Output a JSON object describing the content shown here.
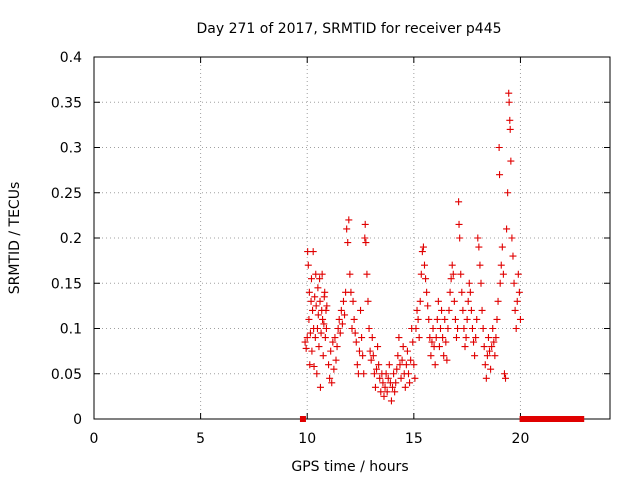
{
  "chart_data": {
    "type": "scatter",
    "title": "Day 271 of 2017, SRMTID for receiver p445",
    "xlabel": "GPS time / hours",
    "ylabel": "SRMTID / TECUs",
    "xlim": [
      0,
      24.2
    ],
    "ylim": [
      0,
      0.4
    ],
    "xticks": [
      0,
      5,
      10,
      15,
      20
    ],
    "xtick_labels": [
      "0",
      "5",
      "10",
      "15",
      "20"
    ],
    "yticks": [
      0,
      0.05,
      0.1,
      0.15,
      0.2,
      0.25,
      0.3,
      0.35,
      0.4
    ],
    "ytick_labels": [
      "0",
      "0.05",
      "0.1",
      "0.15",
      "0.2",
      "0.25",
      "0.3",
      "0.35",
      "0.4"
    ],
    "grid": true,
    "marker": "+",
    "color": "#e00000",
    "series": [
      {
        "name": "SRMTID",
        "points": [
          [
            9.8,
            0.0
          ],
          [
            9.9,
            0.085
          ],
          [
            9.95,
            0.078
          ],
          [
            10.0,
            0.09
          ],
          [
            10.02,
            0.185
          ],
          [
            10.05,
            0.17
          ],
          [
            10.08,
            0.11
          ],
          [
            10.1,
            0.14
          ],
          [
            10.12,
            0.06
          ],
          [
            10.15,
            0.095
          ],
          [
            10.18,
            0.13
          ],
          [
            10.2,
            0.155
          ],
          [
            10.22,
            0.075
          ],
          [
            10.25,
            0.12
          ],
          [
            10.28,
            0.185
          ],
          [
            10.3,
            0.1
          ],
          [
            10.32,
            0.058
          ],
          [
            10.35,
            0.135
          ],
          [
            10.38,
            0.09
          ],
          [
            10.4,
            0.16
          ],
          [
            10.42,
            0.125
          ],
          [
            10.45,
            0.05
          ],
          [
            10.48,
            0.1
          ],
          [
            10.5,
            0.145
          ],
          [
            10.52,
            0.115
          ],
          [
            10.55,
            0.08
          ],
          [
            10.58,
            0.155
          ],
          [
            10.6,
            0.13
          ],
          [
            10.62,
            0.035
          ],
          [
            10.65,
            0.095
          ],
          [
            10.68,
            0.12
          ],
          [
            10.7,
            0.16
          ],
          [
            10.72,
            0.11
          ],
          [
            10.75,
            0.07
          ],
          [
            10.78,
            0.105
          ],
          [
            10.8,
            0.135
          ],
          [
            10.82,
            0.14
          ],
          [
            10.85,
            0.09
          ],
          [
            10.88,
            0.12
          ],
          [
            10.9,
            0.1
          ],
          [
            10.92,
            0.125
          ],
          [
            11.0,
            0.06
          ],
          [
            11.05,
            0.045
          ],
          [
            11.1,
            0.075
          ],
          [
            11.15,
            0.04
          ],
          [
            11.2,
            0.085
          ],
          [
            11.25,
            0.055
          ],
          [
            11.3,
            0.09
          ],
          [
            11.35,
            0.065
          ],
          [
            11.4,
            0.08
          ],
          [
            11.45,
            0.1
          ],
          [
            11.5,
            0.11
          ],
          [
            11.55,
            0.095
          ],
          [
            11.6,
            0.12
          ],
          [
            11.65,
            0.105
          ],
          [
            11.7,
            0.13
          ],
          [
            11.75,
            0.115
          ],
          [
            11.8,
            0.14
          ],
          [
            11.85,
            0.21
          ],
          [
            11.9,
            0.195
          ],
          [
            11.95,
            0.22
          ],
          [
            12.0,
            0.16
          ],
          [
            12.05,
            0.14
          ],
          [
            12.1,
            0.1
          ],
          [
            12.15,
            0.13
          ],
          [
            12.2,
            0.11
          ],
          [
            12.25,
            0.095
          ],
          [
            12.3,
            0.085
          ],
          [
            12.35,
            0.06
          ],
          [
            12.4,
            0.05
          ],
          [
            12.45,
            0.075
          ],
          [
            12.5,
            0.12
          ],
          [
            12.55,
            0.09
          ],
          [
            12.6,
            0.07
          ],
          [
            12.65,
            0.05
          ],
          [
            12.7,
            0.2
          ],
          [
            12.72,
            0.215
          ],
          [
            12.75,
            0.195
          ],
          [
            12.8,
            0.16
          ],
          [
            12.85,
            0.13
          ],
          [
            12.9,
            0.1
          ],
          [
            12.95,
            0.075
          ],
          [
            13.0,
            0.065
          ],
          [
            13.05,
            0.09
          ],
          [
            13.1,
            0.07
          ],
          [
            13.15,
            0.05
          ],
          [
            13.2,
            0.035
          ],
          [
            13.25,
            0.055
          ],
          [
            13.3,
            0.08
          ],
          [
            13.35,
            0.06
          ],
          [
            13.4,
            0.045
          ],
          [
            13.45,
            0.03
          ],
          [
            13.5,
            0.05
          ],
          [
            13.55,
            0.04
          ],
          [
            13.6,
            0.025
          ],
          [
            13.65,
            0.035
          ],
          [
            13.7,
            0.05
          ],
          [
            13.75,
            0.03
          ],
          [
            13.8,
            0.045
          ],
          [
            13.85,
            0.06
          ],
          [
            13.9,
            0.04
          ],
          [
            13.95,
            0.02
          ],
          [
            14.0,
            0.035
          ],
          [
            14.05,
            0.05
          ],
          [
            14.1,
            0.03
          ],
          [
            14.15,
            0.04
          ],
          [
            14.2,
            0.055
          ],
          [
            14.25,
            0.07
          ],
          [
            14.3,
            0.09
          ],
          [
            14.35,
            0.06
          ],
          [
            14.4,
            0.045
          ],
          [
            14.45,
            0.065
          ],
          [
            14.5,
            0.08
          ],
          [
            14.55,
            0.05
          ],
          [
            14.6,
            0.035
          ],
          [
            14.65,
            0.06
          ],
          [
            14.7,
            0.075
          ],
          [
            14.75,
            0.05
          ],
          [
            14.8,
            0.04
          ],
          [
            14.85,
            0.065
          ],
          [
            14.9,
            0.1
          ],
          [
            14.95,
            0.085
          ],
          [
            15.0,
            0.06
          ],
          [
            15.05,
            0.045
          ],
          [
            15.1,
            0.1
          ],
          [
            15.15,
            0.12
          ],
          [
            15.2,
            0.11
          ],
          [
            15.25,
            0.09
          ],
          [
            15.3,
            0.13
          ],
          [
            15.35,
            0.16
          ],
          [
            15.4,
            0.185
          ],
          [
            15.45,
            0.19
          ],
          [
            15.5,
            0.17
          ],
          [
            15.55,
            0.155
          ],
          [
            15.6,
            0.14
          ],
          [
            15.65,
            0.125
          ],
          [
            15.7,
            0.11
          ],
          [
            15.75,
            0.09
          ],
          [
            15.8,
            0.07
          ],
          [
            15.85,
            0.085
          ],
          [
            15.9,
            0.1
          ],
          [
            15.95,
            0.08
          ],
          [
            16.0,
            0.06
          ],
          [
            16.05,
            0.09
          ],
          [
            16.1,
            0.11
          ],
          [
            16.15,
            0.13
          ],
          [
            16.2,
            0.08
          ],
          [
            16.25,
            0.1
          ],
          [
            16.3,
            0.12
          ],
          [
            16.35,
            0.09
          ],
          [
            16.4,
            0.07
          ],
          [
            16.45,
            0.11
          ],
          [
            16.5,
            0.085
          ],
          [
            16.55,
            0.065
          ],
          [
            16.6,
            0.1
          ],
          [
            16.65,
            0.12
          ],
          [
            16.7,
            0.14
          ],
          [
            16.75,
            0.155
          ],
          [
            16.8,
            0.17
          ],
          [
            16.85,
            0.16
          ],
          [
            16.9,
            0.13
          ],
          [
            16.95,
            0.11
          ],
          [
            17.0,
            0.09
          ],
          [
            17.05,
            0.1
          ],
          [
            17.1,
            0.24
          ],
          [
            17.12,
            0.215
          ],
          [
            17.15,
            0.2
          ],
          [
            17.2,
            0.16
          ],
          [
            17.25,
            0.14
          ],
          [
            17.3,
            0.12
          ],
          [
            17.35,
            0.1
          ],
          [
            17.4,
            0.08
          ],
          [
            17.45,
            0.09
          ],
          [
            17.5,
            0.11
          ],
          [
            17.55,
            0.13
          ],
          [
            17.6,
            0.15
          ],
          [
            17.65,
            0.14
          ],
          [
            17.7,
            0.12
          ],
          [
            17.75,
            0.1
          ],
          [
            17.8,
            0.085
          ],
          [
            17.85,
            0.07
          ],
          [
            17.9,
            0.09
          ],
          [
            17.95,
            0.11
          ],
          [
            18.0,
            0.2
          ],
          [
            18.05,
            0.19
          ],
          [
            18.1,
            0.17
          ],
          [
            18.15,
            0.15
          ],
          [
            18.2,
            0.12
          ],
          [
            18.25,
            0.1
          ],
          [
            18.3,
            0.08
          ],
          [
            18.35,
            0.06
          ],
          [
            18.4,
            0.045
          ],
          [
            18.45,
            0.07
          ],
          [
            18.5,
            0.09
          ],
          [
            18.55,
            0.075
          ],
          [
            18.6,
            0.055
          ],
          [
            18.65,
            0.08
          ],
          [
            18.7,
            0.1
          ],
          [
            18.75,
            0.085
          ],
          [
            18.8,
            0.07
          ],
          [
            18.85,
            0.09
          ],
          [
            18.9,
            0.11
          ],
          [
            18.95,
            0.13
          ],
          [
            19.0,
            0.3
          ],
          [
            19.02,
            0.27
          ],
          [
            19.05,
            0.15
          ],
          [
            19.1,
            0.17
          ],
          [
            19.15,
            0.19
          ],
          [
            19.2,
            0.16
          ],
          [
            19.25,
            0.05
          ],
          [
            19.3,
            0.045
          ],
          [
            19.35,
            0.21
          ],
          [
            19.4,
            0.25
          ],
          [
            19.45,
            0.36
          ],
          [
            19.47,
            0.35
          ],
          [
            19.5,
            0.33
          ],
          [
            19.52,
            0.32
          ],
          [
            19.55,
            0.285
          ],
          [
            19.6,
            0.2
          ],
          [
            19.65,
            0.18
          ],
          [
            19.7,
            0.15
          ],
          [
            19.75,
            0.12
          ],
          [
            19.8,
            0.1
          ],
          [
            19.85,
            0.13
          ],
          [
            19.9,
            0.16
          ],
          [
            19.95,
            0.14
          ],
          [
            20.0,
            0.11
          ],
          [
            20.1,
            0.0
          ],
          [
            20.3,
            0.0
          ],
          [
            20.5,
            0.0
          ],
          [
            20.7,
            0.0
          ],
          [
            20.9,
            0.0
          ],
          [
            21.1,
            0.0
          ],
          [
            21.3,
            0.0
          ],
          [
            21.5,
            0.0
          ],
          [
            21.7,
            0.0
          ],
          [
            21.9,
            0.0
          ],
          [
            22.1,
            0.0
          ],
          [
            22.3,
            0.0
          ],
          [
            22.5,
            0.0
          ],
          [
            22.7,
            0.0
          ],
          [
            22.85,
            0.0
          ]
        ]
      }
    ]
  }
}
